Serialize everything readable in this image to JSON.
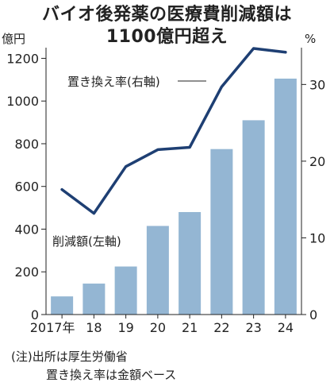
{
  "title": [
    "バイオ後発薬の医療費削減額は",
    "1100億円超え"
  ],
  "chart_data": {
    "type": "bar+line",
    "categories": [
      "2017年",
      "18",
      "19",
      "20",
      "21",
      "22",
      "23",
      "24"
    ],
    "series": [
      {
        "name": "削減額(左軸)",
        "type": "bar",
        "axis": "left",
        "unit": "億円",
        "values": [
          85,
          145,
          225,
          415,
          480,
          775,
          910,
          1105
        ]
      },
      {
        "name": "置き換え率(右軸)",
        "type": "line",
        "axis": "right",
        "unit": "%",
        "values": [
          16.3,
          13.2,
          19.3,
          21.5,
          21.8,
          29.7,
          34.7,
          34.2
        ]
      }
    ],
    "left_axis": {
      "unit": "億円",
      "ylim": [
        0,
        1250
      ],
      "ticks": [
        0,
        200,
        400,
        600,
        800,
        1000,
        1200
      ]
    },
    "right_axis": {
      "unit": "%",
      "ylim": [
        0,
        34.8
      ],
      "ticks": [
        0,
        10,
        20,
        30
      ]
    },
    "grid": false,
    "colors": {
      "bar": "#94b6d3",
      "line": "#1e3f73"
    }
  },
  "notes": [
    "(注)出所は厚生労働省",
    "置き換え率は金額ベース"
  ]
}
